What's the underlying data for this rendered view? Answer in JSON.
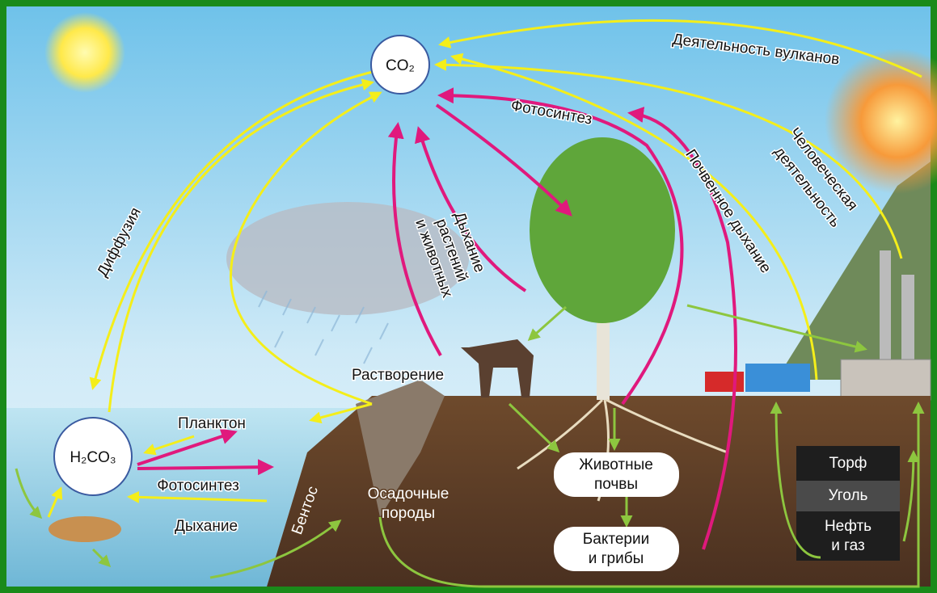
{
  "labels": {
    "co2": "CO₂",
    "volcano": "Деятельность вулканов",
    "photosynthesis_top": "Фотосинтез",
    "soil_respiration": "Почвенное дыхание",
    "human_activity": [
      "Человеческая",
      "деятельность"
    ],
    "diffusion": "Диффузия",
    "respiration": [
      "Дыхание",
      "растений",
      "и животных"
    ],
    "dissolution": "Растворение",
    "plankton": "Планктон",
    "h2co3": "H₂CO₃",
    "photosynthesis_water": "Фотосинтез",
    "respiration_water": "Дыхание",
    "benthos": "Бентос",
    "sediments": [
      "Осадочные",
      "породы"
    ],
    "soil_animals": [
      "Животные",
      "почвы"
    ],
    "bacteria": [
      "Бактерии",
      "и грибы"
    ],
    "peat": "Торф",
    "coal": "Уголь",
    "oil": [
      "Нефть",
      "и газ"
    ]
  }
}
